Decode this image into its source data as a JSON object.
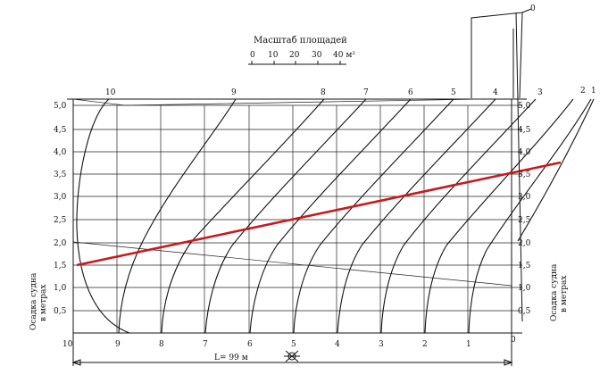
{
  "scale": {
    "title": "Масштаб площадей",
    "ticks": [
      "0",
      "10",
      "20",
      "30",
      "40 м²"
    ]
  },
  "axis_left": {
    "title_line1": "Осадка судна",
    "title_line2": "в метрах",
    "ticks": [
      "5,0",
      "4,5",
      "4,0",
      "3,5",
      "3,0",
      "2,5",
      "2,0",
      "1,5",
      "1,0",
      "0,5"
    ]
  },
  "axis_right": {
    "title_line1": "Осадка судна",
    "title_line2": "в метрах",
    "ticks": [
      "5,0",
      "4,5",
      "4,0",
      "3,5",
      "3,0",
      "2,5",
      "2,0",
      "1,5",
      "1,0",
      "0,5"
    ]
  },
  "top_frames": [
    "10",
    "9",
    "8",
    "7",
    "6",
    "5",
    "4",
    "3",
    "2",
    "1",
    "0"
  ],
  "bottom_frames": [
    "10",
    "9",
    "8",
    "7",
    "6",
    "5",
    "4",
    "3",
    "2",
    "1",
    "0"
  ],
  "length_label": "L= 99 м",
  "colors": {
    "line": "#111111",
    "highlight": "#c8191e"
  }
}
